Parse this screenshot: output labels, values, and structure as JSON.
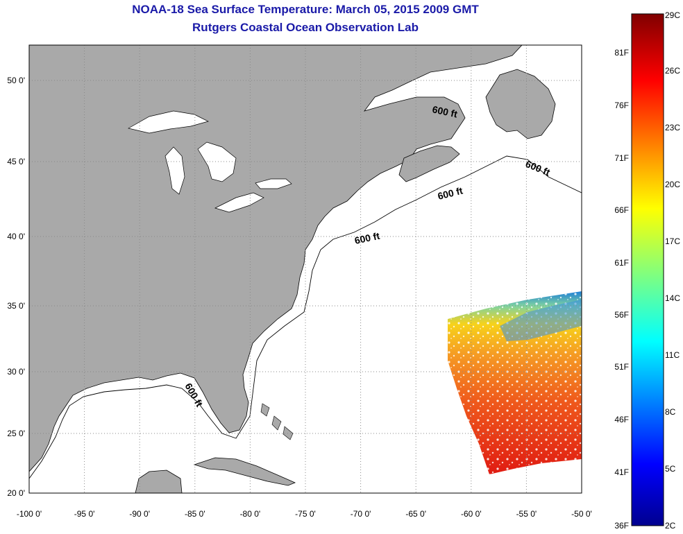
{
  "header": {
    "title": "NOAA-18 Sea Surface Temperature:  March 05, 2015 2009 GMT",
    "subtitle": "Rutgers Coastal Ocean Observation Lab"
  },
  "axes": {
    "lon_ticks": [
      "-100 0'",
      "-95 0'",
      "-90 0'",
      "-85 0'",
      "-80 0'",
      "-75 0'",
      "-70 0'",
      "-65 0'",
      "-60 0'",
      "-55 0'",
      "-50 0'"
    ],
    "lat_ticks": [
      "50 0'",
      "45 0'",
      "40 0'",
      "35 0'",
      "30 0'",
      "25 0'",
      "20 0'"
    ]
  },
  "isobath_labels": [
    "600 ft",
    "600 ft",
    "600 ft",
    "600 ft",
    "600 ft"
  ],
  "colorbar": {
    "celsius": [
      "29C",
      "26C",
      "23C",
      "20C",
      "17C",
      "14C",
      "11C",
      "8C",
      "5C",
      "2C"
    ],
    "fahrenheit": [
      "81F",
      "76F",
      "71F",
      "66F",
      "61F",
      "56F",
      "51F",
      "46F",
      "41F",
      "36F"
    ]
  },
  "colors": {
    "land": "#a9a9a9",
    "ocean": "#ffffff",
    "title": "#1a1aa8",
    "grid": "#999999"
  }
}
